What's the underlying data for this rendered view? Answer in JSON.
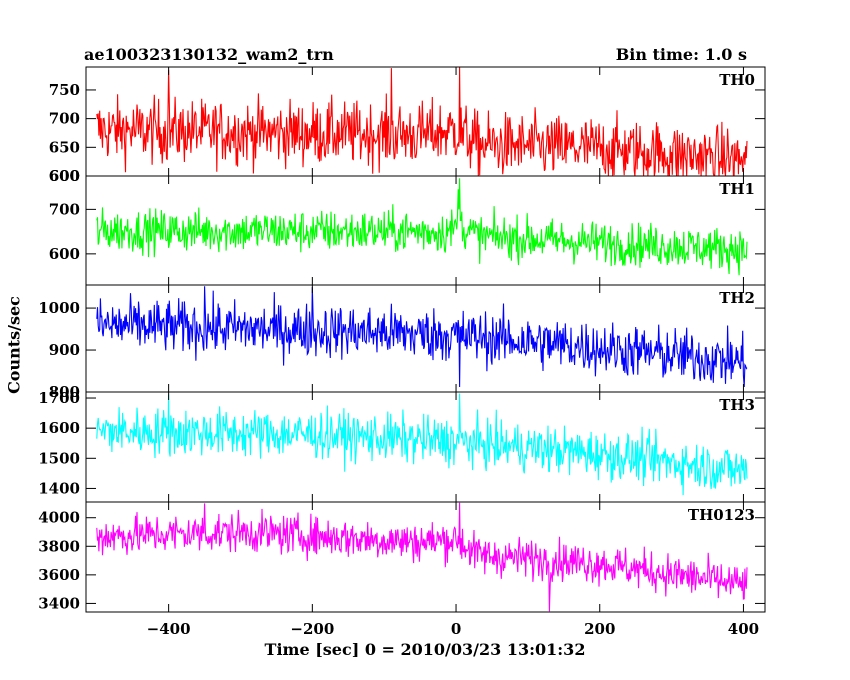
{
  "header": {
    "title": "ae100323130132_wam2_trn",
    "bin_time": "Bin time: 1.0 s"
  },
  "chart_data": {
    "type": "line",
    "xlabel": "Time [sec] 0 = 2010/03/23 13:01:32",
    "ylabel": "Counts/sec",
    "xlim": [
      -515,
      430
    ],
    "x_ticks": [
      -400,
      -200,
      0,
      200,
      400
    ],
    "panels": [
      {
        "name": "TH0",
        "color": "#ff0000",
        "ylim": [
          600,
          790
        ],
        "y_ticks": [
          600,
          650,
          700,
          750
        ],
        "y_tick_labels": [
          "600",
          "650",
          "700",
          "750"
        ],
        "bottom_label": "600",
        "trend": [
          {
            "x": -500,
            "y": 680
          },
          {
            "x": -50,
            "y": 672
          },
          {
            "x": 0,
            "y": 680
          },
          {
            "x": 30,
            "y": 655
          },
          {
            "x": 200,
            "y": 648
          },
          {
            "x": 400,
            "y": 628
          }
        ],
        "noise_sd": 28,
        "spikes": [
          {
            "x": 5,
            "y": 790
          },
          {
            "x": -400,
            "y": 785
          },
          {
            "x": -90,
            "y": 788
          }
        ]
      },
      {
        "name": "TH1",
        "color": "#00ff00",
        "ylim": [
          530,
          775
        ],
        "y_ticks": [
          600,
          700
        ],
        "y_tick_labels": [
          "600",
          "700"
        ],
        "trend": [
          {
            "x": -500,
            "y": 652
          },
          {
            "x": -10,
            "y": 650
          },
          {
            "x": 5,
            "y": 665
          },
          {
            "x": 30,
            "y": 640
          },
          {
            "x": 200,
            "y": 625
          },
          {
            "x": 400,
            "y": 610
          }
        ],
        "noise_sd": 24,
        "spikes": [
          {
            "x": 5,
            "y": 770
          },
          {
            "x": 3,
            "y": 745
          }
        ]
      },
      {
        "name": "TH2",
        "color": "#0000ff",
        "ylim": [
          800,
          1055
        ],
        "y_ticks": [
          800,
          900,
          1000
        ],
        "y_tick_labels": [
          "800",
          "900",
          "1000"
        ],
        "trend": [
          {
            "x": -500,
            "y": 960
          },
          {
            "x": -100,
            "y": 942
          },
          {
            "x": 0,
            "y": 935
          },
          {
            "x": 200,
            "y": 905
          },
          {
            "x": 400,
            "y": 872
          }
        ],
        "noise_sd": 32,
        "spikes": [
          {
            "x": -350,
            "y": 1052
          },
          {
            "x": -200,
            "y": 1050
          },
          {
            "x": 5,
            "y": 812
          }
        ]
      },
      {
        "name": "TH3",
        "color": "#00ffff",
        "ylim": [
          1355,
          1720
        ],
        "y_ticks": [
          1400,
          1500,
          1600,
          1700
        ],
        "y_tick_labels": [
          "1400",
          "1500",
          "1600",
          "1700"
        ],
        "trend": [
          {
            "x": -500,
            "y": 1590
          },
          {
            "x": -200,
            "y": 1580
          },
          {
            "x": 0,
            "y": 1555
          },
          {
            "x": 200,
            "y": 1515
          },
          {
            "x": 400,
            "y": 1460
          }
        ],
        "noise_sd": 40,
        "spikes": [
          {
            "x": -400,
            "y": 1712
          },
          {
            "x": 5,
            "y": 1715
          }
        ]
      },
      {
        "name": "TH0123",
        "color": "#ff00ff",
        "ylim": [
          3340,
          4110
        ],
        "y_ticks": [
          3400,
          3600,
          3800,
          4000
        ],
        "y_tick_labels": [
          "3400",
          "3600",
          "3800",
          "4000"
        ],
        "trend": [
          {
            "x": -500,
            "y": 3870
          },
          {
            "x": -300,
            "y": 3900
          },
          {
            "x": -50,
            "y": 3830
          },
          {
            "x": 0,
            "y": 3850
          },
          {
            "x": 30,
            "y": 3740
          },
          {
            "x": 200,
            "y": 3680
          },
          {
            "x": 400,
            "y": 3530
          }
        ],
        "noise_sd": 70,
        "spikes": [
          {
            "x": 5,
            "y": 4105
          },
          {
            "x": -350,
            "y": 4100
          },
          {
            "x": 130,
            "y": 3345
          }
        ]
      }
    ]
  }
}
